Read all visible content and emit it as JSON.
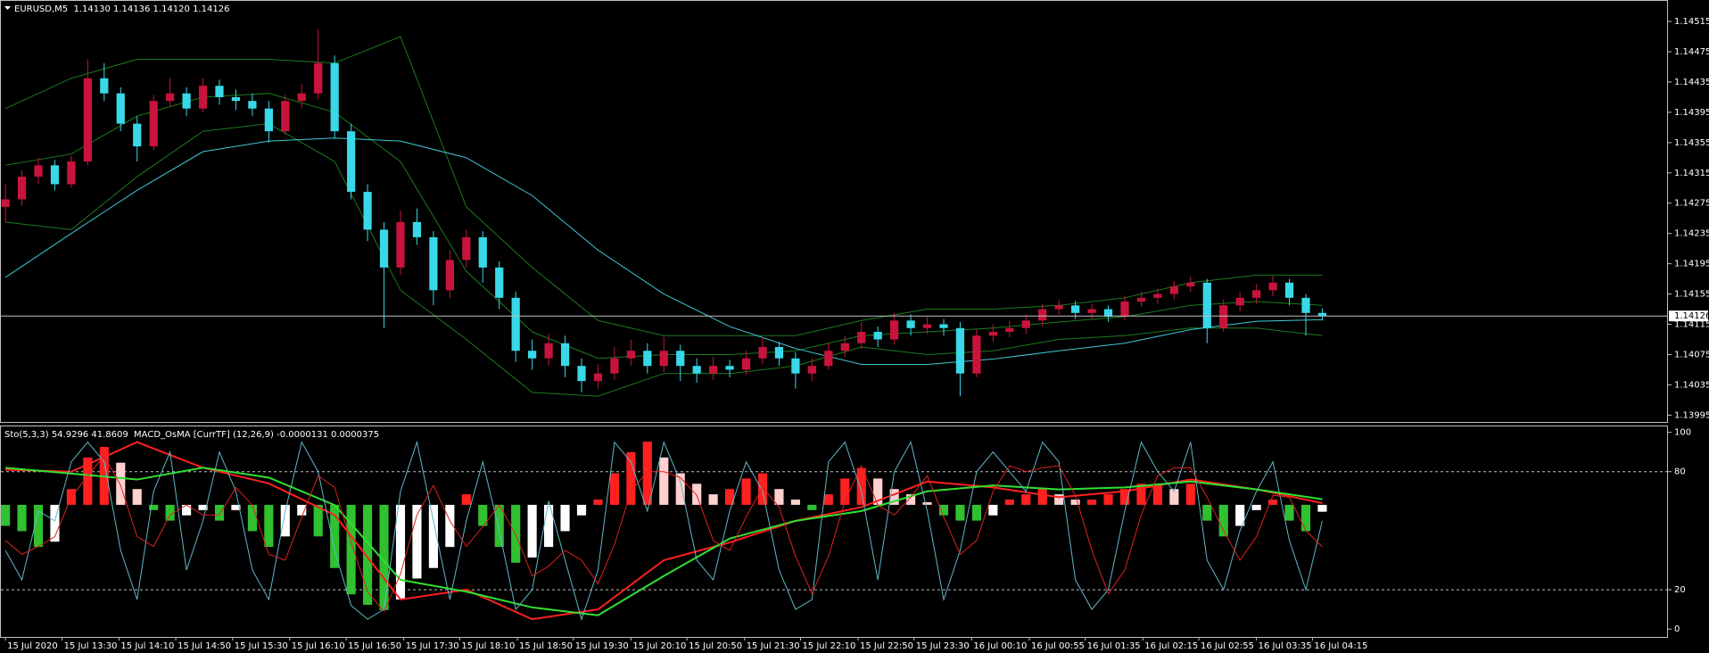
{
  "chart_data": [
    {
      "type": "candlestick",
      "title": "EURUSD,M5  1.14130 1.14136 1.14120 1.14126",
      "xlim": [
        -0.33,
        101
      ],
      "ylim": [
        1.13986,
        1.14541
      ],
      "yticks": [
        1.14515,
        1.14475,
        1.14435,
        1.14395,
        1.14355,
        1.14315,
        1.14275,
        1.14235,
        1.14195,
        1.14155,
        1.14115,
        1.14075,
        1.14035,
        1.13995
      ],
      "last_price": 1.14126,
      "up_color": "#c8143c",
      "down_color": "#38d8e8",
      "open": [
        1.1427,
        1.1428,
        1.1431,
        1.14325,
        1.143,
        1.1433,
        1.1444,
        1.1442,
        1.1438,
        1.1435,
        1.1441,
        1.1442,
        1.144,
        1.1443,
        1.14415,
        1.1441,
        1.144,
        1.1437,
        1.1441,
        1.1442,
        1.1446,
        1.1437,
        1.1429,
        1.1424,
        1.1419,
        1.1425,
        1.1423,
        1.1416,
        1.142,
        1.1423,
        1.1419,
        1.1415,
        1.1408,
        1.1407,
        1.1409,
        1.1406,
        1.1404,
        1.1405,
        1.1407,
        1.1408,
        1.1406,
        1.1408,
        1.1406,
        1.1405,
        1.1406,
        1.14055,
        1.1407,
        1.14085,
        1.1407,
        1.1405,
        1.1406,
        1.1408,
        1.1409,
        1.14105,
        1.14095,
        1.1412,
        1.1411,
        1.14115,
        1.1411,
        1.1405,
        1.141,
        1.14105,
        1.1411,
        1.1412,
        1.14135,
        1.1414,
        1.1413,
        1.14135,
        1.14125,
        1.14145,
        1.1415,
        1.14155,
        1.14165,
        1.1417,
        1.1411,
        1.1414,
        1.1415,
        1.1416,
        1.1417,
        1.1415,
        1.1413
      ],
      "high": [
        1.143,
        1.14318,
        1.14335,
        1.14332,
        1.14338,
        1.14465,
        1.1446,
        1.14428,
        1.1439,
        1.14418,
        1.1444,
        1.14428,
        1.1444,
        1.14438,
        1.14425,
        1.1442,
        1.1441,
        1.14418,
        1.14432,
        1.14505,
        1.1447,
        1.1438,
        1.143,
        1.1425,
        1.14265,
        1.14268,
        1.14238,
        1.14212,
        1.1424,
        1.14238,
        1.14198,
        1.14158,
        1.14095,
        1.14102,
        1.141,
        1.1407,
        1.14062,
        1.14085,
        1.14095,
        1.1409,
        1.14098,
        1.14088,
        1.1407,
        1.14072,
        1.14068,
        1.1408,
        1.14098,
        1.14092,
        1.14078,
        1.1407,
        1.1409,
        1.141,
        1.14118,
        1.14112,
        1.1413,
        1.14128,
        1.14125,
        1.14122,
        1.14118,
        1.14108,
        1.14115,
        1.1412,
        1.14128,
        1.14142,
        1.14148,
        1.14146,
        1.14142,
        1.1414,
        1.14152,
        1.14158,
        1.14162,
        1.14172,
        1.14178,
        1.14175,
        1.14148,
        1.14158,
        1.14168,
        1.1418,
        1.14175,
        1.14155,
        1.14136
      ],
      "low": [
        1.1425,
        1.14272,
        1.143,
        1.14292,
        1.14295,
        1.14325,
        1.1441,
        1.1437,
        1.1433,
        1.14345,
        1.14402,
        1.1439,
        1.14395,
        1.14405,
        1.14398,
        1.1439,
        1.14355,
        1.14365,
        1.144,
        1.14412,
        1.1436,
        1.1428,
        1.14225,
        1.1411,
        1.1418,
        1.1422,
        1.1414,
        1.1415,
        1.1419,
        1.1417,
        1.14135,
        1.14065,
        1.14055,
        1.1406,
        1.14045,
        1.14025,
        1.1403,
        1.14042,
        1.1406,
        1.1405,
        1.14052,
        1.1404,
        1.14038,
        1.14042,
        1.14045,
        1.14048,
        1.14062,
        1.1406,
        1.1403,
        1.1404,
        1.14055,
        1.14072,
        1.14082,
        1.14085,
        1.14088,
        1.141,
        1.14102,
        1.141,
        1.1402,
        1.14045,
        1.14092,
        1.14098,
        1.14102,
        1.14112,
        1.14128,
        1.14122,
        1.14122,
        1.14118,
        1.1412,
        1.14138,
        1.14142,
        1.14148,
        1.14158,
        1.1409,
        1.14105,
        1.14132,
        1.14142,
        1.14152,
        1.1414,
        1.141,
        1.1412
      ],
      "close": [
        1.1428,
        1.1431,
        1.14325,
        1.143,
        1.1433,
        1.1444,
        1.1442,
        1.1438,
        1.1435,
        1.1441,
        1.1442,
        1.144,
        1.1443,
        1.14415,
        1.1441,
        1.144,
        1.1437,
        1.1441,
        1.1442,
        1.1446,
        1.1437,
        1.1429,
        1.1424,
        1.1419,
        1.1425,
        1.1423,
        1.1416,
        1.142,
        1.1423,
        1.1419,
        1.1415,
        1.1408,
        1.1407,
        1.1409,
        1.1406,
        1.1404,
        1.1405,
        1.1407,
        1.1408,
        1.1406,
        1.1408,
        1.1406,
        1.1405,
        1.1406,
        1.14055,
        1.1407,
        1.14085,
        1.1407,
        1.1405,
        1.1406,
        1.1408,
        1.1409,
        1.14105,
        1.14095,
        1.1412,
        1.1411,
        1.14115,
        1.1411,
        1.1405,
        1.141,
        1.14105,
        1.1411,
        1.1412,
        1.14135,
        1.1414,
        1.1413,
        1.14135,
        1.14125,
        1.14145,
        1.1415,
        1.14155,
        1.14165,
        1.1417,
        1.1411,
        1.1414,
        1.1415,
        1.1416,
        1.1417,
        1.1415,
        1.1413,
        1.14126
      ],
      "overlays": [
        {
          "color": "#1e7a1e",
          "x": [
            0,
            4,
            8,
            12,
            16,
            20,
            24,
            28,
            32,
            36,
            40,
            44,
            48,
            52,
            56,
            60,
            64,
            68,
            72,
            76,
            80
          ],
          "values": [
            1.144,
            1.1444,
            1.14465,
            1.14465,
            1.14465,
            1.1446,
            1.14495,
            1.1427,
            1.1419,
            1.1412,
            1.141,
            1.141,
            1.141,
            1.1412,
            1.14135,
            1.14135,
            1.1414,
            1.1415,
            1.1417,
            1.1418,
            1.1418
          ]
        },
        {
          "color": "#1e7a1e",
          "x": [
            0,
            4,
            8,
            12,
            16,
            20,
            24,
            28,
            32,
            36,
            40,
            44,
            48,
            52,
            56,
            60,
            64,
            68,
            72,
            76,
            80
          ],
          "values": [
            1.14325,
            1.1434,
            1.1439,
            1.14415,
            1.1442,
            1.14395,
            1.1433,
            1.14185,
            1.14105,
            1.1407,
            1.14075,
            1.14075,
            1.1408,
            1.141,
            1.14105,
            1.1411,
            1.14118,
            1.14125,
            1.1414,
            1.14145,
            1.1414
          ]
        },
        {
          "color": "#1e7a1e",
          "x": [
            0,
            4,
            8,
            12,
            16,
            20,
            24,
            28,
            32,
            36,
            40,
            44,
            48,
            52,
            56,
            60,
            64,
            68,
            72,
            76,
            80
          ],
          "values": [
            1.1425,
            1.1424,
            1.1431,
            1.1437,
            1.1438,
            1.1433,
            1.1416,
            1.14095,
            1.14025,
            1.1402,
            1.1405,
            1.1405,
            1.1406,
            1.14085,
            1.14075,
            1.1408,
            1.14095,
            1.141,
            1.1411,
            1.1411,
            1.141
          ]
        },
        {
          "color": "#40c8d8",
          "x": [
            0,
            4,
            8,
            12,
            16,
            20,
            24,
            28,
            32,
            36,
            40,
            44,
            48,
            52,
            56,
            60,
            64,
            68,
            72,
            76,
            80
          ],
          "values": [
            1.14177,
            1.14235,
            1.14292,
            1.14343,
            1.14357,
            1.14361,
            1.14357,
            1.14335,
            1.14285,
            1.14213,
            1.14155,
            1.14112,
            1.14083,
            1.14062,
            1.14062,
            1.14069,
            1.1408,
            1.1409,
            1.14108,
            1.14119,
            1.14121
          ]
        }
      ]
    },
    {
      "type": "oscillator",
      "title": "Sto(5,3,3) 54.9296 41.8609  MACD_OsMA [CurrTF] (12,26,9) -0.0000131 0.0000375",
      "xlim": [
        -0.33,
        101
      ],
      "ylim": [
        -4,
        103
      ],
      "yticks": [
        100,
        80,
        20,
        0
      ],
      "levels": [
        80,
        20
      ],
      "y2lim": [
        -0.000251,
        0.000149
      ],
      "xticks": [
        {
          "value": 0,
          "label": "15 Jul 2020"
        },
        {
          "value": 3.44,
          "label": "15 Jul 13:30"
        },
        {
          "value": 6.9,
          "label": "15 Jul 14:10"
        },
        {
          "value": 10.35,
          "label": "15 Jul 14:50"
        },
        {
          "value": 13.8,
          "label": "15 Jul 15:30"
        },
        {
          "value": 17.27,
          "label": "15 Jul 16:10"
        },
        {
          "value": 20.7,
          "label": "15 Jul 16:50"
        },
        {
          "value": 24.2,
          "label": "15 Jul 17:30"
        },
        {
          "value": 27.6,
          "label": "15 Jul 18:10"
        },
        {
          "value": 31.1,
          "label": "15 Jul 18:50"
        },
        {
          "value": 34.5,
          "label": "15 Jul 19:30"
        },
        {
          "value": 38.0,
          "label": "15 Jul 20:10"
        },
        {
          "value": 41.4,
          "label": "15 Jul 20:50"
        },
        {
          "value": 44.9,
          "label": "15 Jul 21:30"
        },
        {
          "value": 48.3,
          "label": "15 Jul 22:10"
        },
        {
          "value": 51.8,
          "label": "15 Jul 22:50"
        },
        {
          "value": 55.2,
          "label": "15 Jul 23:30"
        },
        {
          "value": 58.7,
          "label": "16 Jul 00:10"
        },
        {
          "value": 62.2,
          "label": "16 Jul 00:55"
        },
        {
          "value": 65.6,
          "label": "16 Jul 01:35"
        },
        {
          "value": 69.1,
          "label": "16 Jul 02:15"
        },
        {
          "value": 72.5,
          "label": "16 Jul 02:55"
        },
        {
          "value": 76.0,
          "label": "16 Jul 03:35"
        },
        {
          "value": 79.4,
          "label": "16 Jul 04:15"
        }
      ],
      "histogram": {
        "axis": "y2",
        "color_rise": "#ff2020",
        "color_fade_up": "#ffd0d0",
        "color_fall": "#30c030",
        "color_fade_down": "#ffffff",
        "values": [
          -4e-05,
          -5e-05,
          -8e-05,
          -7e-05,
          3e-05,
          9e-05,
          0.00011,
          8e-05,
          3e-05,
          -1e-05,
          -3e-05,
          -2e-05,
          -1e-05,
          -3e-05,
          -1e-05,
          -5e-05,
          -8e-05,
          -6e-05,
          -2e-05,
          -6e-05,
          -0.00012,
          -0.00017,
          -0.00019,
          -0.0002,
          -0.00018,
          -0.00014,
          -0.00012,
          -8e-05,
          2e-05,
          -4e-05,
          -8e-05,
          -0.00011,
          -0.0001,
          -8e-05,
          -5e-05,
          -2e-05,
          1e-05,
          6e-05,
          0.0001,
          0.00012,
          9e-05,
          6e-05,
          4e-05,
          2e-05,
          3e-05,
          5e-05,
          6e-05,
          3e-05,
          1e-05,
          -1e-05,
          2e-05,
          5e-05,
          7e-05,
          5e-05,
          3e-05,
          2e-05,
          5e-06,
          -2e-05,
          -3e-05,
          -3e-05,
          -2e-05,
          1e-05,
          2e-05,
          3e-05,
          2e-05,
          1e-05,
          1e-05,
          2e-05,
          3e-05,
          4e-05,
          4e-05,
          3e-05,
          4e-05,
          -3e-05,
          -6e-05,
          -4e-05,
          -1e-05,
          1e-05,
          -3e-05,
          -5e-05,
          -1.31e-05
        ]
      },
      "series": [
        {
          "color": "#ff2020",
          "width": 2,
          "x": [
            0,
            4,
            8,
            12,
            16,
            20,
            24,
            28,
            32,
            36,
            40,
            44,
            48,
            52,
            56,
            60,
            64,
            68,
            72,
            76,
            80
          ],
          "values": [
            81,
            80,
            95,
            82,
            74,
            58,
            15,
            20,
            5,
            10,
            35,
            44,
            55,
            62,
            75,
            72,
            67,
            70,
            76,
            71,
            64
          ]
        },
        {
          "color": "#30e030",
          "width": 2,
          "x": [
            0,
            4,
            8,
            12,
            16,
            20,
            24,
            28,
            32,
            36,
            40,
            44,
            48,
            52,
            56,
            60,
            64,
            68,
            72,
            76,
            80
          ],
          "values": [
            82,
            79,
            76,
            82,
            77,
            63,
            25,
            19,
            11,
            7,
            27,
            46,
            55,
            60,
            70,
            73,
            71,
            72,
            75,
            71,
            66
          ]
        },
        {
          "color": "#5fb8c8",
          "width": 1,
          "values": [
            40,
            25,
            60,
            55,
            85,
            95,
            85,
            40,
            15,
            70,
            90,
            30,
            55,
            90,
            70,
            30,
            15,
            60,
            95,
            80,
            40,
            12,
            5,
            10,
            70,
            95,
            55,
            15,
            55,
            85,
            50,
            10,
            20,
            65,
            35,
            5,
            30,
            95,
            85,
            60,
            95,
            75,
            35,
            25,
            60,
            85,
            70,
            30,
            10,
            15,
            85,
            95,
            70,
            25,
            80,
            95,
            60,
            15,
            40,
            80,
            90,
            80,
            70,
            95,
            85,
            25,
            10,
            20,
            60,
            95,
            80,
            70,
            95,
            35,
            20,
            50,
            70,
            85,
            45,
            20,
            54.9296
          ]
        },
        {
          "color": "#e02020",
          "width": 1,
          "values": [
            45,
            38,
            42,
            47,
            67,
            78,
            88,
            73,
            47,
            42,
            58,
            63,
            58,
            58,
            72,
            63,
            38,
            35,
            57,
            78,
            72,
            44,
            19,
            9,
            28,
            58,
            73,
            55,
            42,
            52,
            63,
            48,
            27,
            32,
            40,
            35,
            23,
            43,
            70,
            80,
            80,
            77,
            68,
            45,
            40,
            57,
            72,
            62,
            37,
            18,
            37,
            65,
            83,
            63,
            58,
            67,
            78,
            57,
            38,
            45,
            70,
            83,
            80,
            82,
            83,
            68,
            40,
            18,
            30,
            58,
            78,
            82,
            82,
            67,
            50,
            35,
            47,
            68,
            67,
            50,
            41.8609
          ]
        }
      ]
    }
  ]
}
